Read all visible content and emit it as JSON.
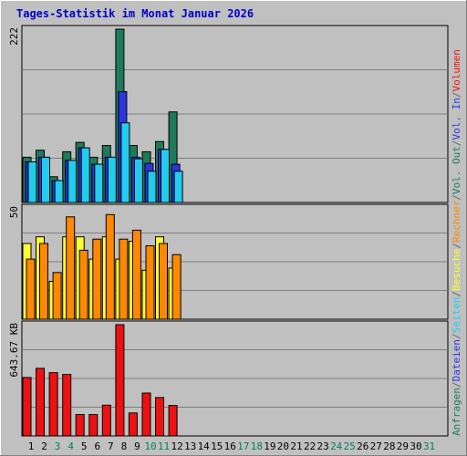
{
  "chart_data": {
    "type": "bar",
    "title": "Tages-Statistik im Monat Januar 2026",
    "days": [
      "1",
      "2",
      "3",
      "4",
      "5",
      "6",
      "7",
      "8",
      "9",
      "10",
      "11",
      "12",
      "13",
      "14",
      "15",
      "16",
      "17",
      "18",
      "19",
      "20",
      "21",
      "22",
      "23",
      "24",
      "25",
      "26",
      "27",
      "28",
      "29",
      "30",
      "31"
    ],
    "weekend_days": [
      "3",
      "4",
      "10",
      "11",
      "17",
      "18",
      "24",
      "25",
      "31"
    ],
    "panels": [
      {
        "name": "requests",
        "max_label": "222",
        "max": 222,
        "series": [
          {
            "name": "Anfragen",
            "color": "#1e7a5a",
            "values": [
              58,
              67,
              33,
              65,
              77,
              58,
              73,
              222,
              73,
              65,
              78,
              116,
              0,
              0,
              0,
              0,
              0,
              0,
              0,
              0,
              0,
              0,
              0,
              0,
              0,
              0,
              0,
              0,
              0,
              0,
              0
            ]
          },
          {
            "name": "Dateien",
            "color": "#2a35e0",
            "values": [
              52,
              58,
              28,
              54,
              70,
              49,
              58,
              142,
              58,
              50,
              68,
              49,
              0,
              0,
              0,
              0,
              0,
              0,
              0,
              0,
              0,
              0,
              0,
              0,
              0,
              0,
              0,
              0,
              0,
              0,
              0
            ]
          },
          {
            "name": "Seiten",
            "color": "#22ccee",
            "values": [
              52,
              58,
              28,
              54,
              70,
              49,
              58,
              102,
              56,
              40,
              68,
              40,
              0,
              0,
              0,
              0,
              0,
              0,
              0,
              0,
              0,
              0,
              0,
              0,
              0,
              0,
              0,
              0,
              0,
              0,
              0
            ]
          }
        ]
      },
      {
        "name": "visits",
        "max_label": "50",
        "max": 50,
        "series": [
          {
            "name": "Besuche",
            "color": "#ffff33",
            "values": [
              34,
              37,
              17,
              37,
              37,
              27,
              37,
              27,
              35,
              22,
              37,
              23,
              0,
              0,
              0,
              0,
              0,
              0,
              0,
              0,
              0,
              0,
              0,
              0,
              0,
              0,
              0,
              0,
              0,
              0,
              0
            ]
          },
          {
            "name": "Rechner",
            "color": "#ff8800",
            "values": [
              27,
              34,
              21,
              46,
              31,
              36,
              47,
              36,
              40,
              33,
              34,
              29,
              0,
              0,
              0,
              0,
              0,
              0,
              0,
              0,
              0,
              0,
              0,
              0,
              0,
              0,
              0,
              0,
              0,
              0,
              0
            ]
          }
        ]
      },
      {
        "name": "volume",
        "max_label": "643.67 KB",
        "max": 643.67,
        "series": [
          {
            "name": "Volumen",
            "color": "#ee1111",
            "values": [
              338,
              391,
              366,
              356,
              124,
              124,
              178,
              643.67,
              133,
              248,
              222,
              176,
              0,
              0,
              0,
              0,
              0,
              0,
              0,
              0,
              0,
              0,
              0,
              0,
              0,
              0,
              0,
              0,
              0,
              0,
              0
            ]
          }
        ]
      }
    ],
    "right_legend": [
      {
        "text": "Anfragen",
        "color": "#1e7a5a"
      },
      {
        "text": "/",
        "color": "#666666"
      },
      {
        "text": "Dateien",
        "color": "#2a35e0"
      },
      {
        "text": "/",
        "color": "#666666"
      },
      {
        "text": "Seiten",
        "color": "#22ccee"
      },
      {
        "text": "/",
        "color": "#666666"
      },
      {
        "text": "Besuche",
        "color": "#ffff33"
      },
      {
        "text": "/",
        "color": "#666666"
      },
      {
        "text": "Rechner",
        "color": "#ff8800"
      },
      {
        "text": "/",
        "color": "#666666"
      },
      {
        "text": "Vol. Out",
        "color": "#1e7a5a"
      },
      {
        "text": "/",
        "color": "#666666"
      },
      {
        "text": "Vol. In",
        "color": "#2a35e0"
      },
      {
        "text": "/",
        "color": "#666666"
      },
      {
        "text": "Volumen",
        "color": "#ee1111"
      }
    ],
    "colors": {
      "background": "#c0c0c0",
      "plot": "#c0c0c0",
      "grid": "#7f7f7f",
      "title": "#0000cc",
      "weekday_label": "#000000",
      "weekend_label": "#008060"
    }
  }
}
